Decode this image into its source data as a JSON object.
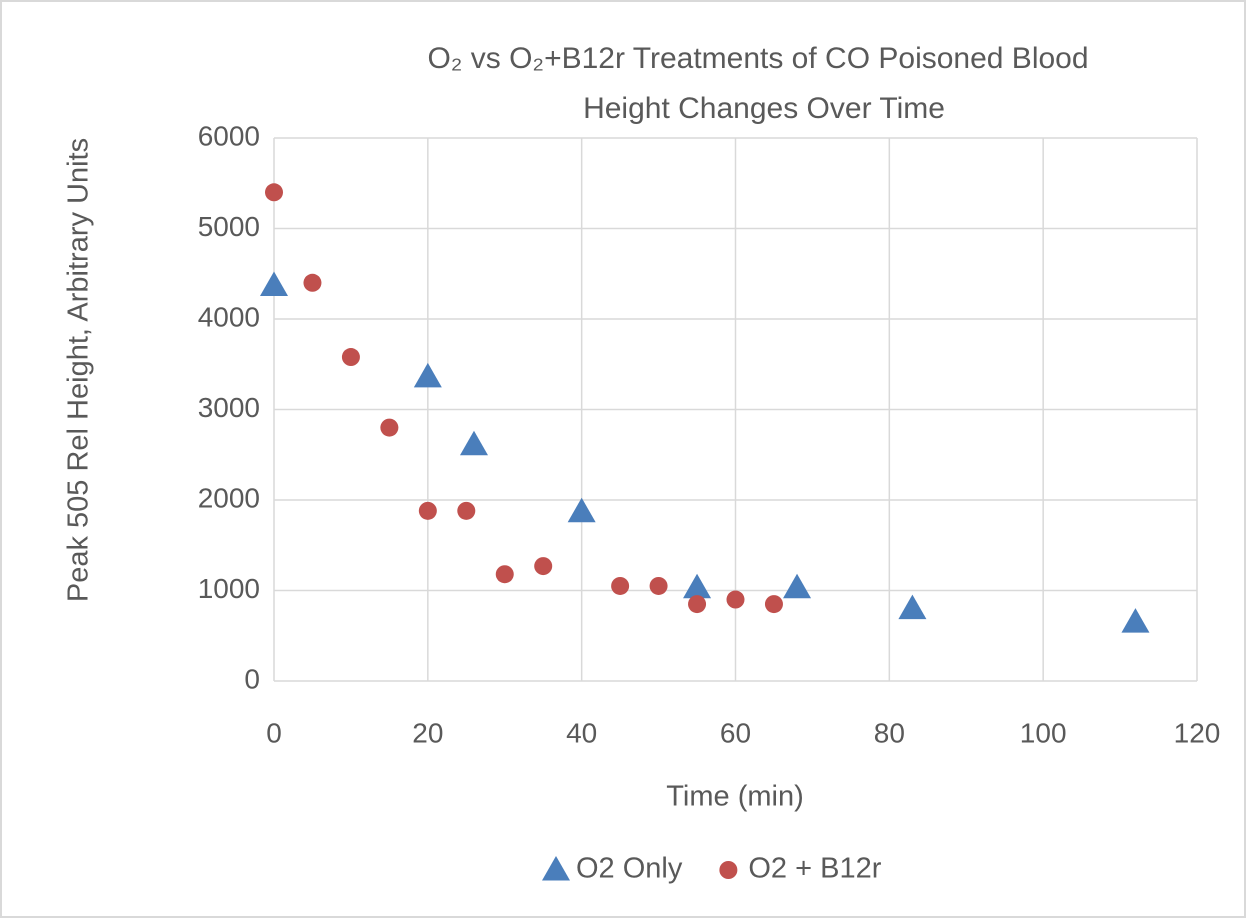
{
  "chart_data": {
    "type": "scatter",
    "title": [
      "O₂ vs O₂+B12r Treatments of CO Poisoned Blood",
      "Height Changes Over Time"
    ],
    "x_label": "Time (min)",
    "y_label": "Peak 505 Rel Height, Arbitrary Units",
    "xlim": [
      0,
      120
    ],
    "xticks": [
      0,
      20,
      40,
      60,
      80,
      100,
      120
    ],
    "ylim": [
      0,
      6000
    ],
    "yticks": [
      0,
      1000,
      2000,
      3000,
      4000,
      5000,
      6000
    ],
    "grid": true,
    "legend": "bottom",
    "series": [
      {
        "name": "O2 Only",
        "color": "#4a7ebb",
        "marker": "triangle",
        "x": [
          0,
          20,
          26,
          40,
          55,
          68,
          83,
          112
        ],
        "values": [
          4370,
          3360,
          2610,
          1870,
          1030,
          1030,
          800,
          650
        ]
      },
      {
        "name": "O2 + B12r",
        "color": "#c0504d",
        "marker": "circle",
        "x": [
          0,
          5,
          10,
          15,
          20,
          25,
          30,
          35,
          45,
          50,
          55,
          60,
          65
        ],
        "values": [
          5400,
          4400,
          3580,
          2800,
          1880,
          1880,
          1180,
          1270,
          1050,
          1050,
          850,
          900,
          850
        ]
      }
    ]
  }
}
